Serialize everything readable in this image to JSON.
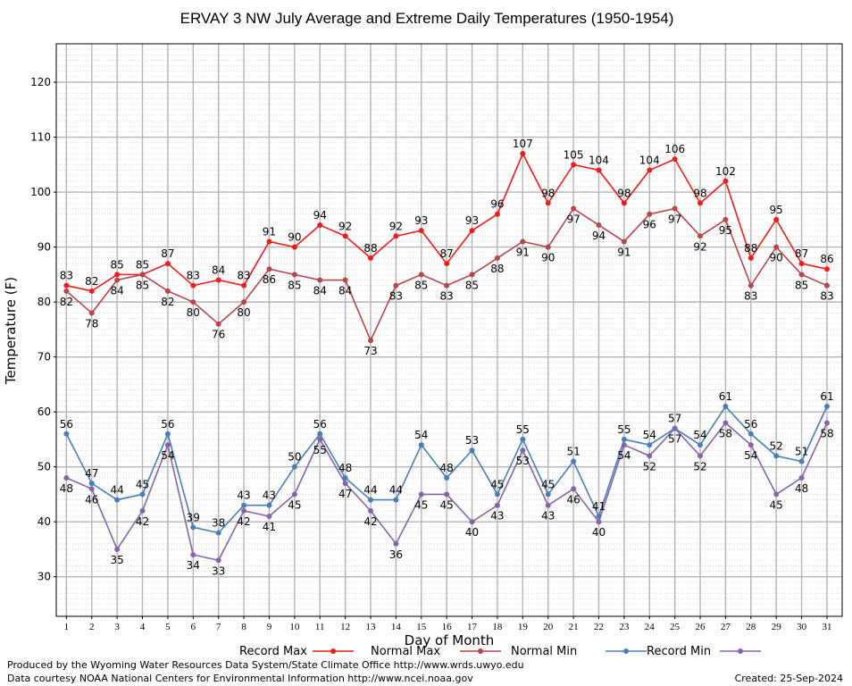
{
  "chart_data": {
    "type": "line",
    "title": "ERVAY 3 NW July Average and Extreme Daily Temperatures (1950-1954)",
    "xlabel": "Day of Month",
    "ylabel": "Temperature (F)",
    "x": [
      1,
      2,
      3,
      4,
      5,
      6,
      7,
      8,
      9,
      10,
      11,
      12,
      13,
      14,
      15,
      16,
      17,
      18,
      19,
      20,
      21,
      22,
      23,
      24,
      25,
      26,
      27,
      28,
      29,
      30,
      31
    ],
    "xlim": [
      0.6,
      31.6
    ],
    "ylim": [
      22.8,
      127
    ],
    "yticks": [
      30,
      40,
      50,
      60,
      70,
      80,
      90,
      100,
      110,
      120
    ],
    "grid": true,
    "legend_position": "bottom",
    "series": [
      {
        "name": "Record Max",
        "color": "#ee1c1c",
        "values": [
          83,
          82,
          85,
          85,
          87,
          83,
          84,
          83,
          91,
          90,
          94,
          92,
          88,
          92,
          93,
          87,
          93,
          96,
          107,
          98,
          105,
          104,
          98,
          104,
          106,
          98,
          102,
          88,
          95,
          87,
          86
        ]
      },
      {
        "name": "Normal Max",
        "color": "#b5464b",
        "values": [
          82,
          78,
          84,
          85,
          82,
          80,
          76,
          80,
          86,
          85,
          84,
          84,
          73,
          83,
          85,
          83,
          85,
          88,
          91,
          90,
          97,
          94,
          91,
          96,
          97,
          92,
          95,
          83,
          90,
          85,
          83
        ]
      },
      {
        "name": "Normal Min",
        "color": "#4a7eb5",
        "values": [
          56,
          47,
          44,
          45,
          56,
          39,
          38,
          43,
          43,
          50,
          56,
          48,
          44,
          44,
          54,
          48,
          53,
          45,
          55,
          45,
          51,
          41,
          55,
          54,
          57,
          54,
          61,
          56,
          52,
          51,
          61
        ]
      },
      {
        "name": "Record Min",
        "color": "#8466a6",
        "values": [
          48,
          46,
          35,
          42,
          54,
          34,
          33,
          42,
          41,
          45,
          55,
          47,
          42,
          36,
          45,
          45,
          40,
          43,
          53,
          43,
          46,
          40,
          54,
          52,
          57,
          52,
          58,
          54,
          45,
          48,
          58
        ]
      }
    ]
  },
  "footer": {
    "credit_line1": "Produced by the Wyoming Water Resources Data System/State Climate Office http://www.wrds.uwyo.edu",
    "credit_line2": "Data courtesy NOAA National Centers for Environmental Information http://www.ncei.noaa.gov",
    "created": "Created:  25-Sep-2024"
  }
}
